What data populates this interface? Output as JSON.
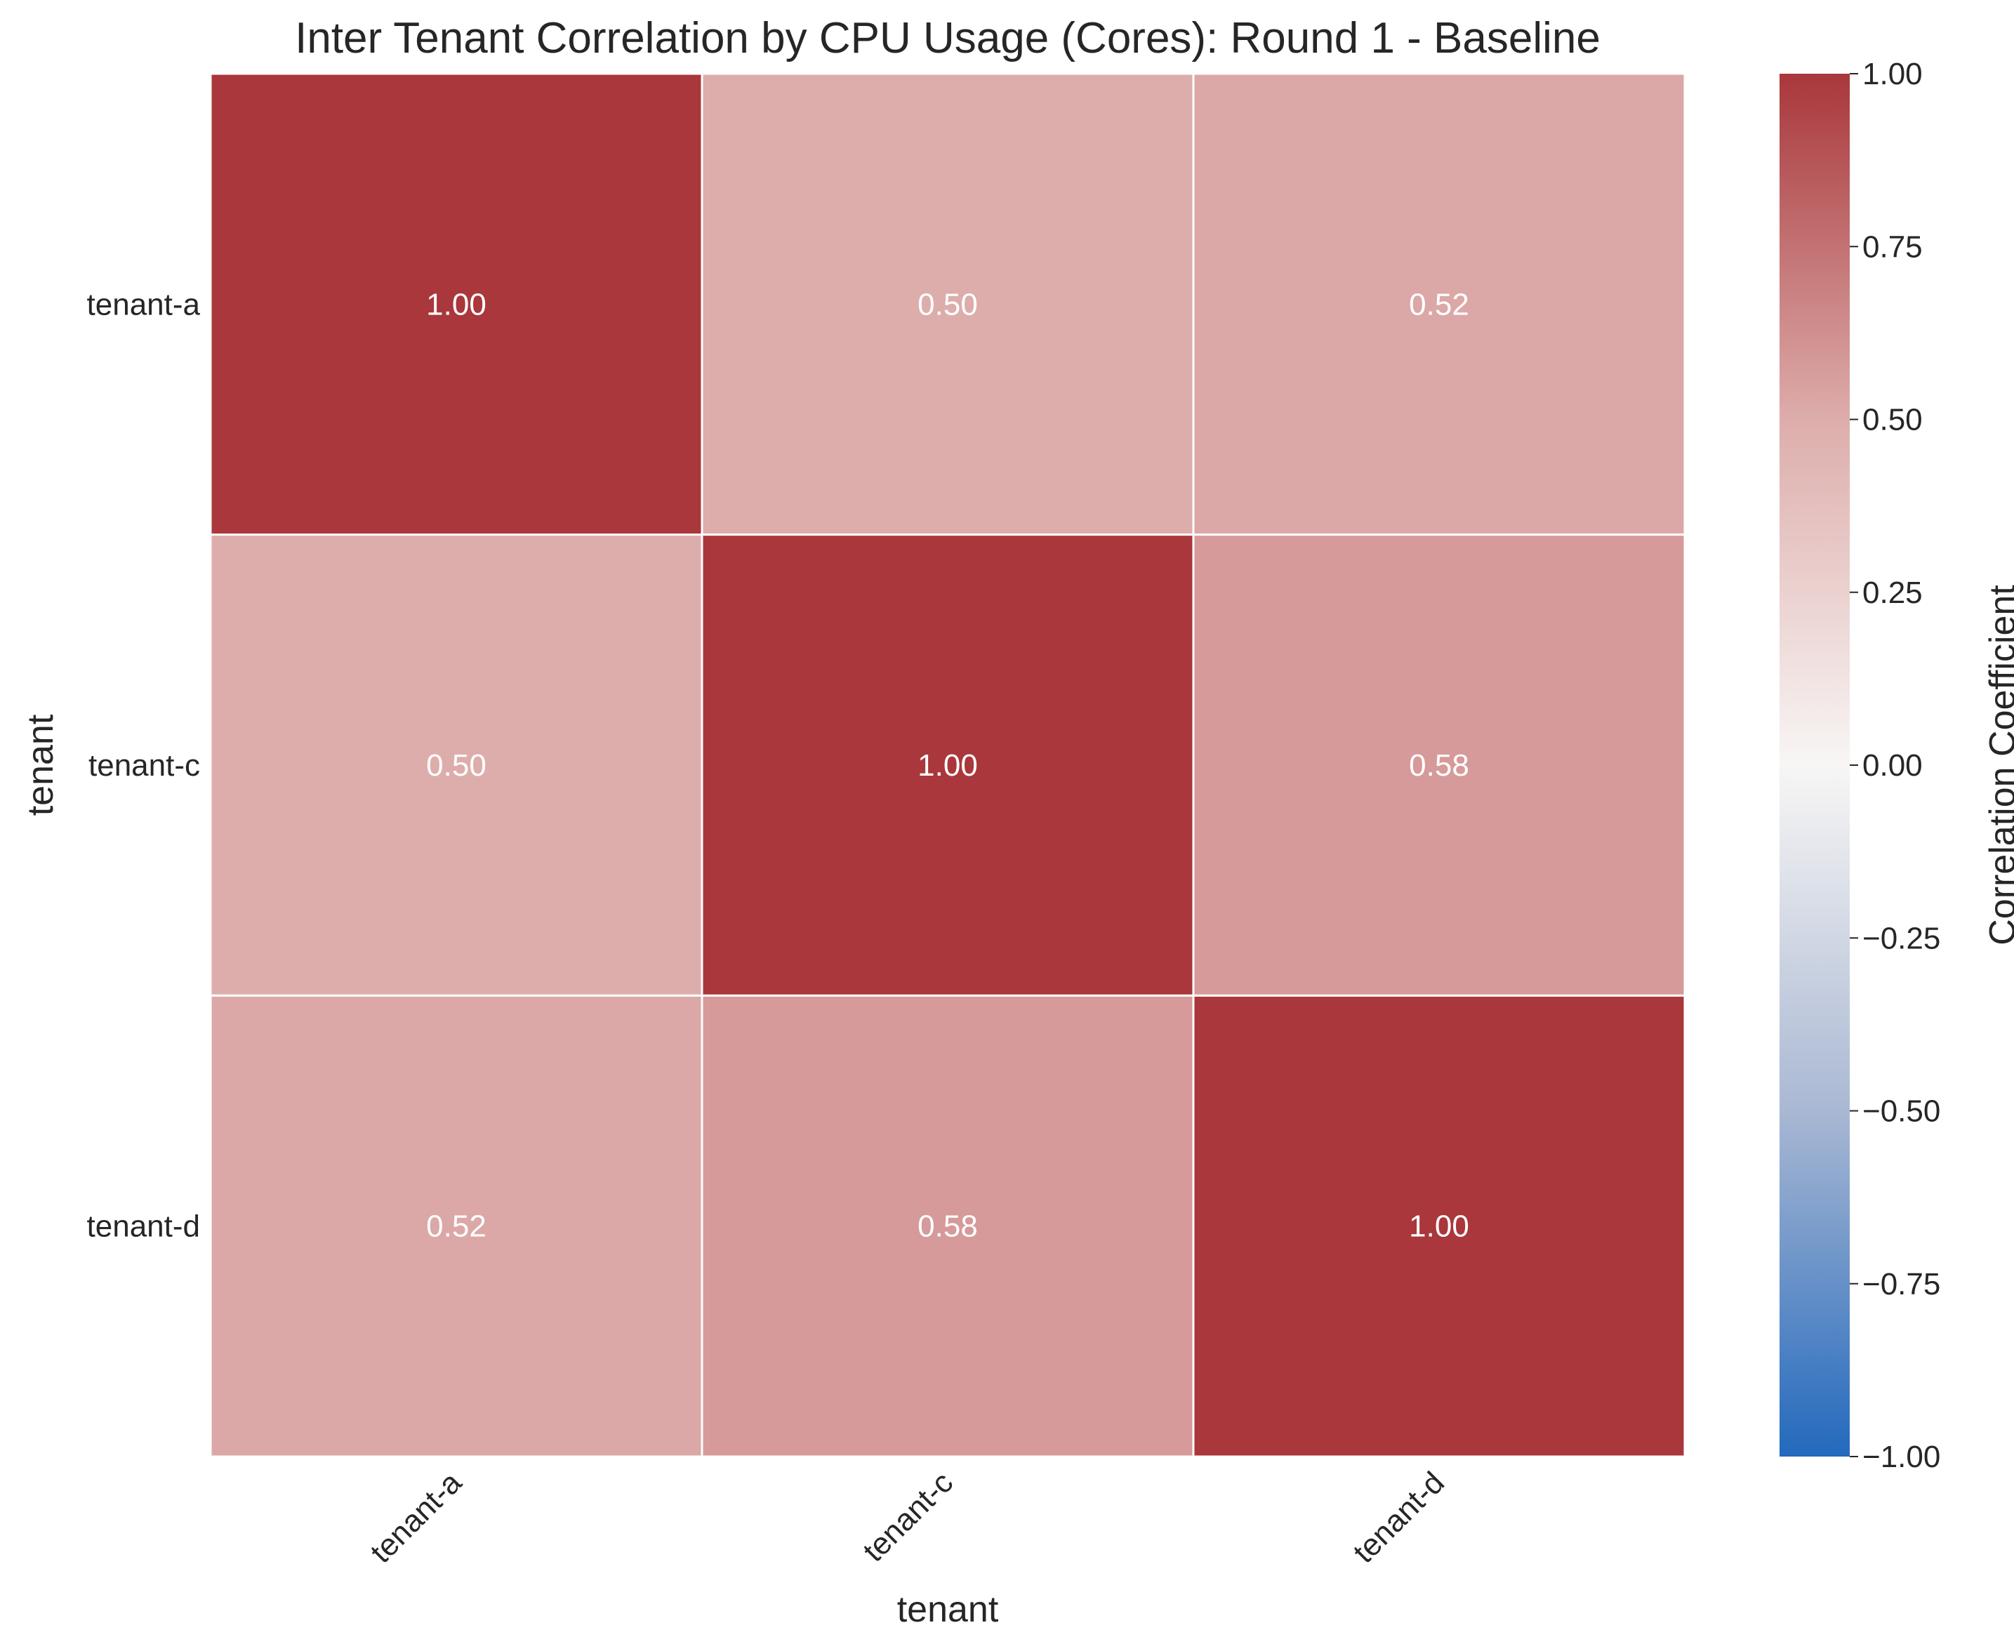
{
  "chart_data": {
    "type": "heatmap",
    "title": "Inter Tenant Correlation by CPU Usage (Cores): Round 1 - Baseline",
    "xlabel": "tenant",
    "ylabel": "tenant",
    "x_categories": [
      "tenant-a",
      "tenant-c",
      "tenant-d"
    ],
    "y_categories": [
      "tenant-a",
      "tenant-c",
      "tenant-d"
    ],
    "values": [
      [
        1.0,
        0.5,
        0.52
      ],
      [
        0.5,
        1.0,
        0.58
      ],
      [
        0.52,
        0.58,
        1.0
      ]
    ],
    "cell_labels": [
      [
        "1.00",
        "0.50",
        "0.52"
      ],
      [
        "0.50",
        "1.00",
        "0.58"
      ],
      [
        "0.52",
        "0.58",
        "1.00"
      ]
    ],
    "colorbar": {
      "label": "Correlation Coefficient",
      "range": [
        -1.0,
        1.0
      ],
      "ticks": [
        1.0,
        0.75,
        0.5,
        0.25,
        0.0,
        -0.25,
        -0.5,
        -0.75,
        -1.0
      ],
      "tick_labels": [
        "1.00",
        "0.75",
        "0.50",
        "0.25",
        "0.00",
        "−0.25",
        "−0.50",
        "−0.75",
        "−1.00"
      ],
      "colormap": "vlag",
      "color_stops": [
        "#2369bd",
        "#a9b8d3",
        "#f8f6f5",
        "#ddadab",
        "#a9373b"
      ]
    },
    "grid": false,
    "cell_border_color": "#ffffff"
  }
}
